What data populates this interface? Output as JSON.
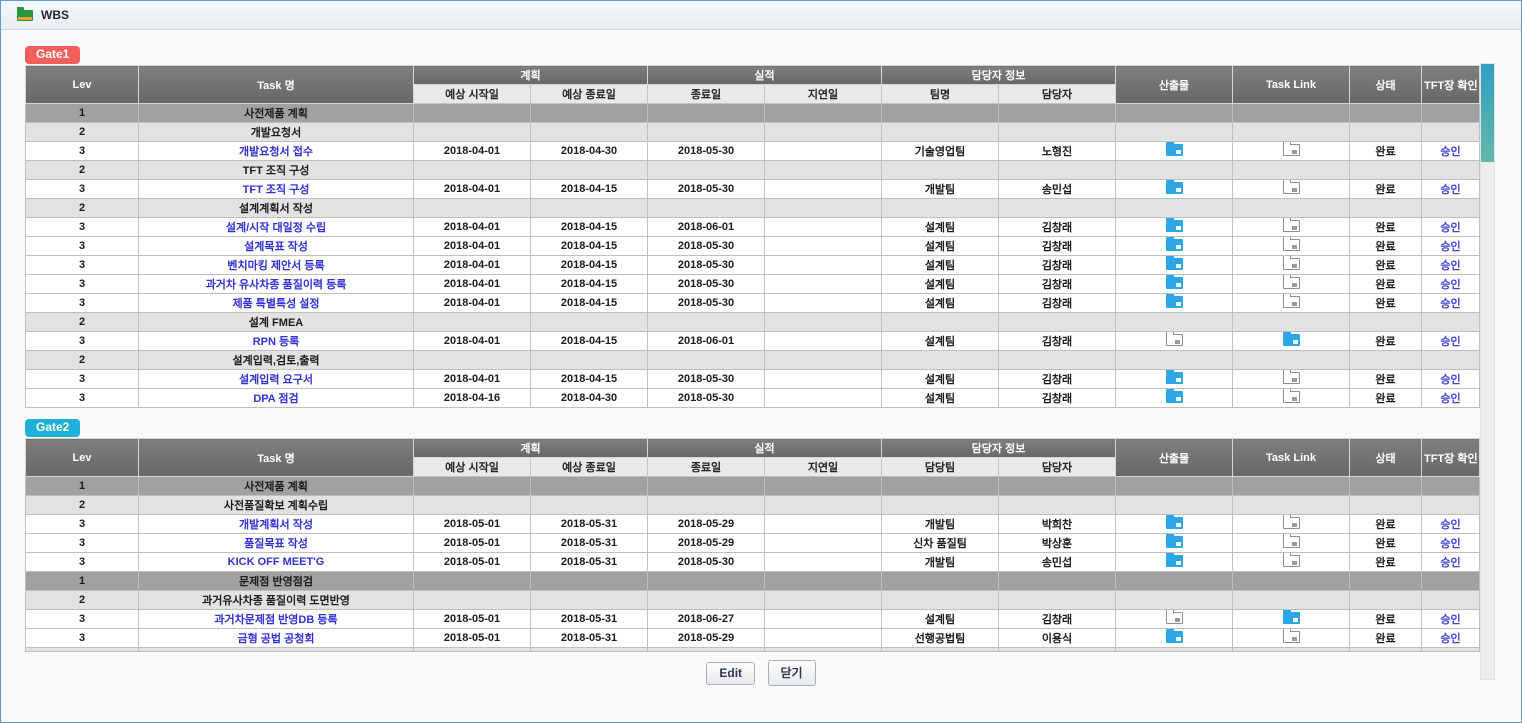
{
  "titlebar": {
    "title": "WBS"
  },
  "buttons": {
    "edit": "Edit",
    "close": "닫기"
  },
  "colors": {
    "gate1_badge": "#f15f5c",
    "gate2_badge": "#1fb0d9",
    "header_dark": "#6f6f6f",
    "lev1_row": "#a1a1a1",
    "lev2_row": "#e2e2e2",
    "link_blue": "#3131d6",
    "folder_blue": "#2ba7e8",
    "scroll_thumb_top": "#2f9fc4",
    "scroll_thumb_bottom": "#63b9a6"
  },
  "gates": [
    {
      "badge": "Gate1",
      "badge_color": "#f15f5c",
      "headers": {
        "lev": "Lev",
        "task": "Task 명",
        "plan_group": "계획",
        "plan_start": "예상 시작일",
        "plan_end": "예상 종료일",
        "actual_group": "실적",
        "actual_end": "종료일",
        "delay": "지연일",
        "owner_group": "담당자 정보",
        "team": "팀명",
        "person": "담당자",
        "output": "산출물",
        "task_link": "Task Link",
        "status": "상태",
        "tft_confirm": "TFT장 확인"
      },
      "rows": [
        {
          "lev": "1",
          "task": "사전제품 계획"
        },
        {
          "lev": "2",
          "task": "개발요청서"
        },
        {
          "lev": "3",
          "task": "개발요청서 접수",
          "plan_start": "2018-04-01",
          "plan_end": "2018-04-30",
          "actual_end": "2018-05-30",
          "delay": "",
          "team": "기술영업팀",
          "person": "노형진",
          "output_icon": "blue-folder-icon",
          "link_icon": "gray-folder-icon",
          "status": "완료",
          "tft": "승인"
        },
        {
          "lev": "2",
          "task": "TFT 조직 구성"
        },
        {
          "lev": "3",
          "task": "TFT 조직 구성",
          "plan_start": "2018-04-01",
          "plan_end": "2018-04-15",
          "actual_end": "2018-05-30",
          "delay": "",
          "team": "개발팀",
          "person": "송민섭",
          "output_icon": "blue-folder-icon",
          "link_icon": "gray-folder-icon",
          "status": "완료",
          "tft": "승인"
        },
        {
          "lev": "2",
          "task": "설계계획서 작성"
        },
        {
          "lev": "3",
          "task": "설계/시작 대일정 수립",
          "plan_start": "2018-04-01",
          "plan_end": "2018-04-15",
          "actual_end": "2018-06-01",
          "delay": "",
          "team": "설계팀",
          "person": "김창래",
          "output_icon": "blue-folder-icon",
          "link_icon": "gray-folder-icon",
          "status": "완료",
          "tft": "승인"
        },
        {
          "lev": "3",
          "task": "설계목표 작성",
          "plan_start": "2018-04-01",
          "plan_end": "2018-04-15",
          "actual_end": "2018-05-30",
          "delay": "",
          "team": "설계팀",
          "person": "김창래",
          "output_icon": "blue-folder-icon",
          "link_icon": "gray-folder-icon",
          "status": "완료",
          "tft": "승인"
        },
        {
          "lev": "3",
          "task": "벤치마킹 제안서 등록",
          "plan_start": "2018-04-01",
          "plan_end": "2018-04-15",
          "actual_end": "2018-05-30",
          "delay": "",
          "team": "설계팀",
          "person": "김창래",
          "output_icon": "blue-folder-icon",
          "link_icon": "gray-folder-icon",
          "status": "완료",
          "tft": "승인"
        },
        {
          "lev": "3",
          "task": "과거차 유사차종 품질이력 등록",
          "plan_start": "2018-04-01",
          "plan_end": "2018-04-15",
          "actual_end": "2018-05-30",
          "delay": "",
          "team": "설계팀",
          "person": "김창래",
          "output_icon": "blue-folder-icon",
          "link_icon": "gray-folder-icon",
          "status": "완료",
          "tft": "승인"
        },
        {
          "lev": "3",
          "task": "제품 특별특성 설정",
          "plan_start": "2018-04-01",
          "plan_end": "2018-04-15",
          "actual_end": "2018-05-30",
          "delay": "",
          "team": "설계팀",
          "person": "김창래",
          "output_icon": "blue-folder-icon",
          "link_icon": "gray-folder-icon",
          "status": "완료",
          "tft": "승인"
        },
        {
          "lev": "2",
          "task": "설계 FMEA"
        },
        {
          "lev": "3",
          "task": "RPN 등록",
          "plan_start": "2018-04-01",
          "plan_end": "2018-04-15",
          "actual_end": "2018-06-01",
          "delay": "",
          "team": "설계팀",
          "person": "김창래",
          "output_icon": "gray-folder-icon",
          "link_icon": "blue-folder-icon",
          "status": "완료",
          "tft": "승인"
        },
        {
          "lev": "2",
          "task": "설계입력,검토,출력"
        },
        {
          "lev": "3",
          "task": "설계입력 요구서",
          "plan_start": "2018-04-01",
          "plan_end": "2018-04-15",
          "actual_end": "2018-05-30",
          "delay": "",
          "team": "설계팀",
          "person": "김창래",
          "output_icon": "blue-folder-icon",
          "link_icon": "gray-folder-icon",
          "status": "완료",
          "tft": "승인"
        },
        {
          "lev": "3",
          "task": "DPA 점검",
          "plan_start": "2018-04-16",
          "plan_end": "2018-04-30",
          "actual_end": "2018-05-30",
          "delay": "",
          "team": "설계팀",
          "person": "김창래",
          "output_icon": "blue-folder-icon",
          "link_icon": "gray-folder-icon",
          "status": "완료",
          "tft": "승인"
        }
      ],
      "partial_row": false
    },
    {
      "badge": "Gate2",
      "badge_color": "#1fb0d9",
      "headers": {
        "lev": "Lev",
        "task": "Task 명",
        "plan_group": "계획",
        "plan_start": "예상 시작일",
        "plan_end": "예상 종료일",
        "actual_group": "실적",
        "actual_end": "종료일",
        "delay": "지연일",
        "owner_group": "담당자 정보",
        "team": "담당팀",
        "person": "담당자",
        "output": "산출물",
        "task_link": "Task Link",
        "status": "상태",
        "tft_confirm": "TFT장 확인"
      },
      "rows": [
        {
          "lev": "1",
          "task": "사전제품 계획"
        },
        {
          "lev": "2",
          "task": "사전품질확보 계획수립"
        },
        {
          "lev": "3",
          "task": "개발계획서 작성",
          "plan_start": "2018-05-01",
          "plan_end": "2018-05-31",
          "actual_end": "2018-05-29",
          "delay": "",
          "team": "개발팀",
          "person": "박희찬",
          "output_icon": "blue-folder-icon",
          "link_icon": "gray-folder-icon",
          "status": "완료",
          "tft": "승인"
        },
        {
          "lev": "3",
          "task": "품질목표 작성",
          "plan_start": "2018-05-01",
          "plan_end": "2018-05-31",
          "actual_end": "2018-05-29",
          "delay": "",
          "team": "신차 품질팀",
          "person": "박상훈",
          "output_icon": "blue-folder-icon",
          "link_icon": "gray-folder-icon",
          "status": "완료",
          "tft": "승인"
        },
        {
          "lev": "3",
          "task": "KICK OFF MEET'G",
          "plan_start": "2018-05-01",
          "plan_end": "2018-05-31",
          "actual_end": "2018-05-30",
          "delay": "",
          "team": "개발팀",
          "person": "송민섭",
          "output_icon": "blue-folder-icon",
          "link_icon": "gray-folder-icon",
          "status": "완료",
          "tft": "승인"
        },
        {
          "lev": "1",
          "task": "문제점 반영점검"
        },
        {
          "lev": "2",
          "task": "과거유사차종 품질이력 도면반영"
        },
        {
          "lev": "3",
          "task": "과거차문제점 반영DB 등록",
          "plan_start": "2018-05-01",
          "plan_end": "2018-05-31",
          "actual_end": "2018-06-27",
          "delay": "",
          "team": "설계팀",
          "person": "김창래",
          "output_icon": "gray-folder-icon",
          "link_icon": "blue-folder-icon",
          "status": "완료",
          "tft": "승인"
        },
        {
          "lev": "3",
          "task": "금형 공법 공청회",
          "plan_start": "2018-05-01",
          "plan_end": "2018-05-31",
          "actual_end": "2018-05-29",
          "delay": "",
          "team": "선행공법팀",
          "person": "이용식",
          "output_icon": "blue-folder-icon",
          "link_icon": "gray-folder-icon",
          "status": "완료",
          "tft": "승인"
        }
      ],
      "partial_row": true
    }
  ]
}
